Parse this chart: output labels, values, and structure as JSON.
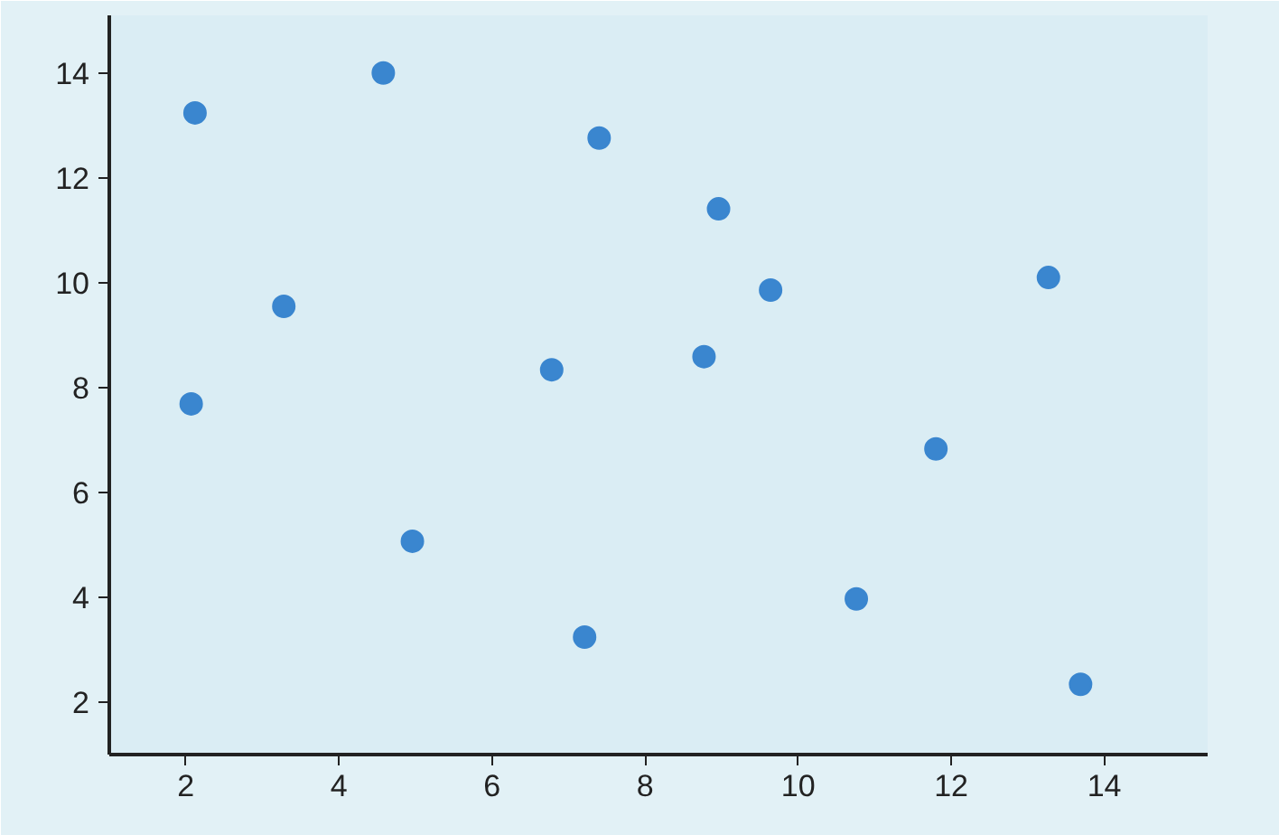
{
  "chart_data": {
    "type": "scatter",
    "color": "#3a86cf",
    "marker": "circle",
    "grid": false,
    "x": [
      2.12,
      2.07,
      3.28,
      4.58,
      4.96,
      6.78,
      7.4,
      7.21,
      8.77,
      8.96,
      9.64,
      10.76,
      11.8,
      13.27,
      13.69
    ],
    "values": [
      13.24,
      7.69,
      9.55,
      14.0,
      5.07,
      8.34,
      12.76,
      3.24,
      8.59,
      11.41,
      9.86,
      3.97,
      6.83,
      10.1,
      2.34
    ],
    "xlim": [
      1,
      15.35
    ],
    "ylim": [
      1,
      15.1
    ],
    "xticks": [
      2,
      4,
      6,
      8,
      10,
      12,
      14
    ],
    "yticks": [
      2,
      4,
      6,
      8,
      10,
      12,
      14
    ]
  }
}
